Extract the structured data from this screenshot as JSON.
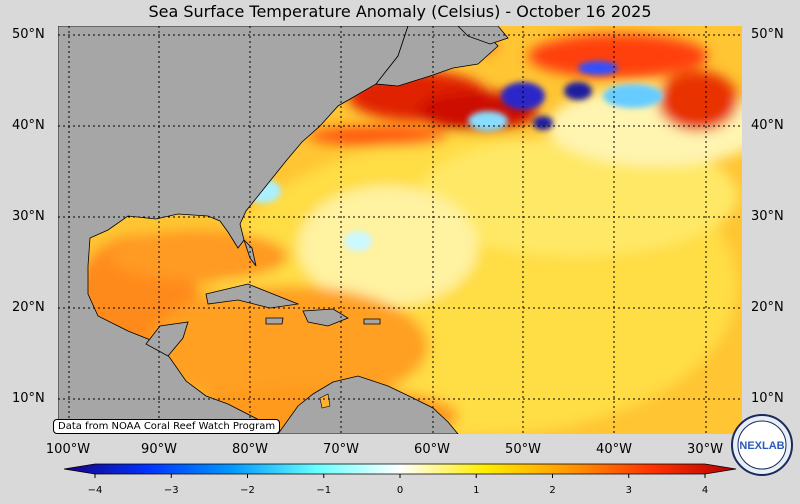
{
  "title": "Sea Surface Temperature Anomaly (Celsius) - October 16 2025",
  "credit": "Data from NOAA Coral Reef Watch Program",
  "latitudes": [
    "50°N",
    "40°N",
    "30°N",
    "20°N",
    "10°N"
  ],
  "longitudes": [
    "100°W",
    "90°W",
    "80°W",
    "70°W",
    "60°W",
    "50°W",
    "40°W",
    "30°W"
  ],
  "colorbar": {
    "ticks": [
      "−4",
      "−3",
      "−2",
      "−1",
      "0",
      "1",
      "2",
      "3",
      "4"
    ],
    "range": [
      -4,
      4
    ],
    "colors": [
      "#1a0080",
      "#0033ff",
      "#0099ff",
      "#66ffff",
      "#ffffff",
      "#ffee00",
      "#ff9900",
      "#ff3300",
      "#b30000"
    ]
  },
  "logo_text": "NEXLAB",
  "colors": {
    "land": "#a6a6a6",
    "ocean_base": "#ffcc33",
    "background": "#d9d9d9"
  }
}
